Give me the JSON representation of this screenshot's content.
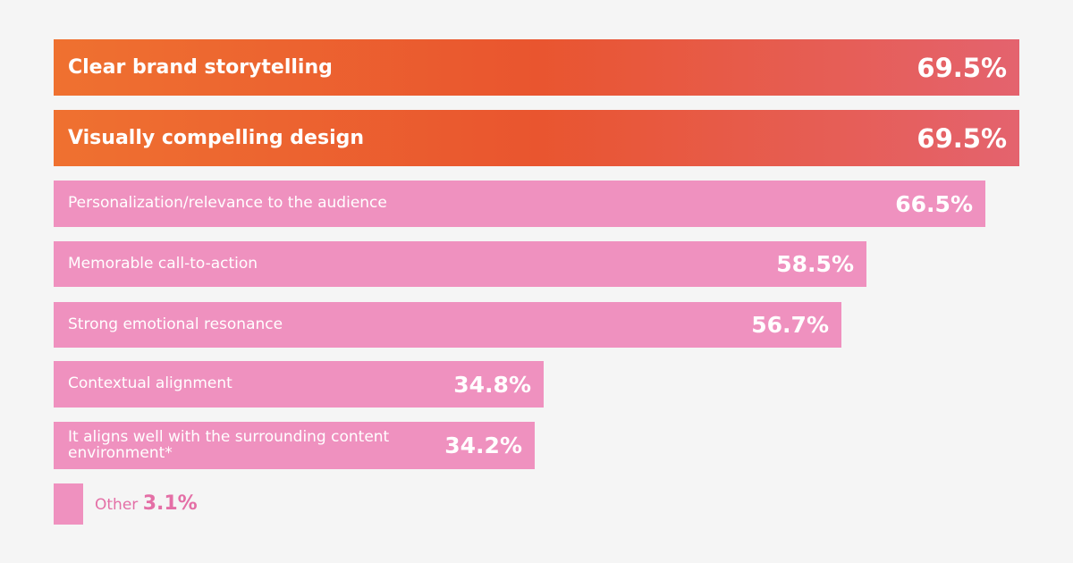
{
  "chart_data": {
    "type": "bar",
    "orientation": "horizontal",
    "categories": [
      "Clear brand storytelling",
      "Visually compelling design",
      "Personalization/relevance to the audience",
      "Memorable call-to-action",
      "Strong emotional resonance",
      "Contextual alignment",
      "It aligns well with the surrounding content environment*",
      "Other"
    ],
    "values": [
      69.5,
      69.5,
      66.5,
      58.5,
      56.7,
      34.8,
      34.2,
      3.1
    ],
    "value_labels": [
      "69.5%",
      "69.5%",
      "66.5%",
      "58.5%",
      "56.7%",
      "34.8%",
      "34.2%",
      "3.1%"
    ],
    "highlighted": [
      true,
      true,
      false,
      false,
      false,
      false,
      false,
      false
    ],
    "unit": "%",
    "colors": {
      "highlight_start": "#ef7130",
      "highlight_mid": "#e9552f",
      "highlight_end": "#e4636e",
      "bar": "#ef91bf",
      "other_text": "#e46fa6",
      "background": "#f5f5f5"
    },
    "axis_visible": false,
    "grid": false
  }
}
